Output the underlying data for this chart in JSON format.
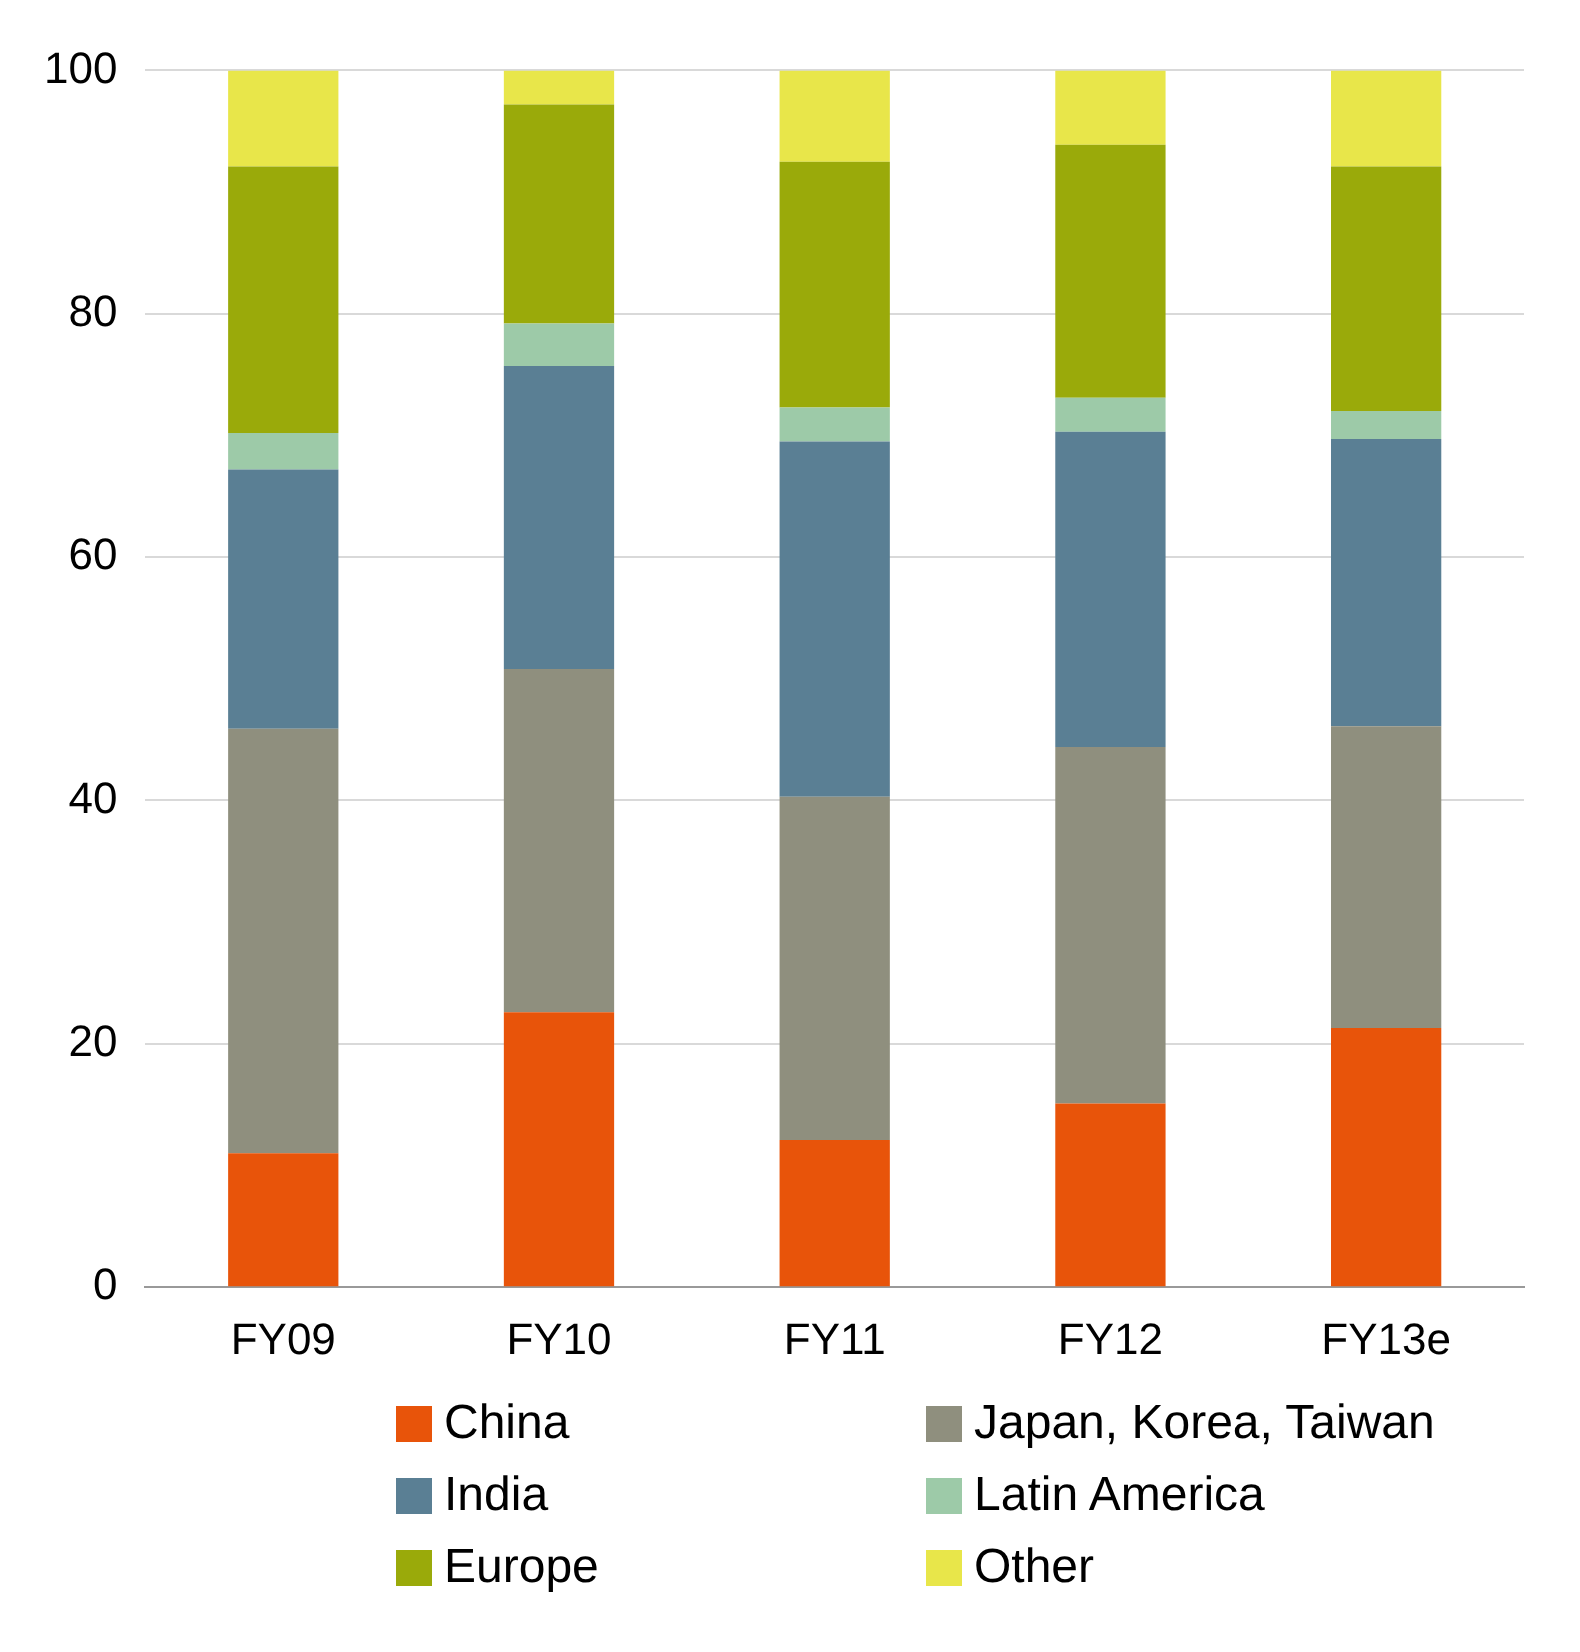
{
  "chart_data": {
    "type": "bar",
    "stacked": true,
    "categories": [
      "FY09",
      "FY10",
      "FY11",
      "FY12",
      "FY13e"
    ],
    "series": [
      {
        "name": "China",
        "color": "#e8540a",
        "values": [
          11.0,
          22.6,
          12.1,
          15.1,
          21.3
        ]
      },
      {
        "name": "Japan, Korea, Taiwan",
        "color": "#8f8f7e",
        "values": [
          34.9,
          28.2,
          28.2,
          29.3,
          24.8
        ]
      },
      {
        "name": "India",
        "color": "#5a7f94",
        "values": [
          21.3,
          24.9,
          29.2,
          25.9,
          23.6
        ]
      },
      {
        "name": "Latin America",
        "color": "#9dcaa8",
        "values": [
          3.0,
          3.5,
          2.8,
          2.8,
          2.3
        ]
      },
      {
        "name": "Europe",
        "color": "#9aaa0a",
        "values": [
          21.9,
          18.0,
          20.2,
          20.8,
          20.1
        ]
      },
      {
        "name": "Other",
        "color": "#e8e64a",
        "values": [
          7.9,
          2.8,
          7.5,
          6.1,
          7.9
        ]
      }
    ],
    "ylim": [
      0,
      100
    ],
    "yticks": [
      0,
      20,
      40,
      60,
      80,
      100
    ],
    "grid": "y",
    "legend": "bottom"
  }
}
